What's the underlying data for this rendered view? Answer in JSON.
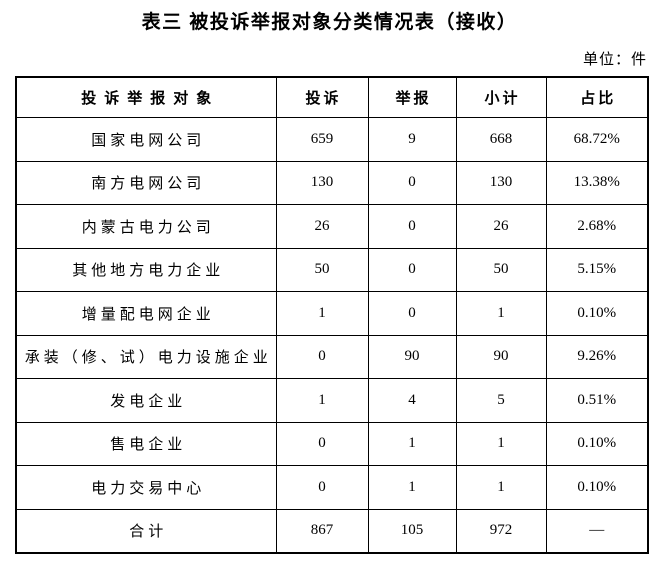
{
  "page": {
    "title": "表三 被投诉举报对象分类情况表（接收）",
    "unit_label": "单位：件"
  },
  "table": {
    "headers": {
      "subject": "投诉举报对象",
      "complaints": "投诉",
      "reports": "举报",
      "subtotal": "小计",
      "share": "占比"
    },
    "rows": [
      {
        "name": "国家电网公司",
        "complaints": "659",
        "reports": "9",
        "subtotal": "668",
        "share": "68.72%"
      },
      {
        "name": "南方电网公司",
        "complaints": "130",
        "reports": "0",
        "subtotal": "130",
        "share": "13.38%"
      },
      {
        "name": "内蒙古电力公司",
        "complaints": "26",
        "reports": "0",
        "subtotal": "26",
        "share": "2.68%"
      },
      {
        "name": "其他地方电力企业",
        "complaints": "50",
        "reports": "0",
        "subtotal": "50",
        "share": "5.15%"
      },
      {
        "name": "增量配电网企业",
        "complaints": "1",
        "reports": "0",
        "subtotal": "1",
        "share": "0.10%"
      },
      {
        "name": "承装（修、试）电力设施企业",
        "complaints": "0",
        "reports": "90",
        "subtotal": "90",
        "share": "9.26%"
      },
      {
        "name": "发电企业",
        "complaints": "1",
        "reports": "4",
        "subtotal": "5",
        "share": "0.51%"
      },
      {
        "name": "售电企业",
        "complaints": "0",
        "reports": "1",
        "subtotal": "1",
        "share": "0.10%"
      },
      {
        "name": "电力交易中心",
        "complaints": "0",
        "reports": "1",
        "subtotal": "1",
        "share": "0.10%"
      },
      {
        "name": "合计",
        "complaints": "867",
        "reports": "105",
        "subtotal": "972",
        "share": "—"
      }
    ]
  }
}
